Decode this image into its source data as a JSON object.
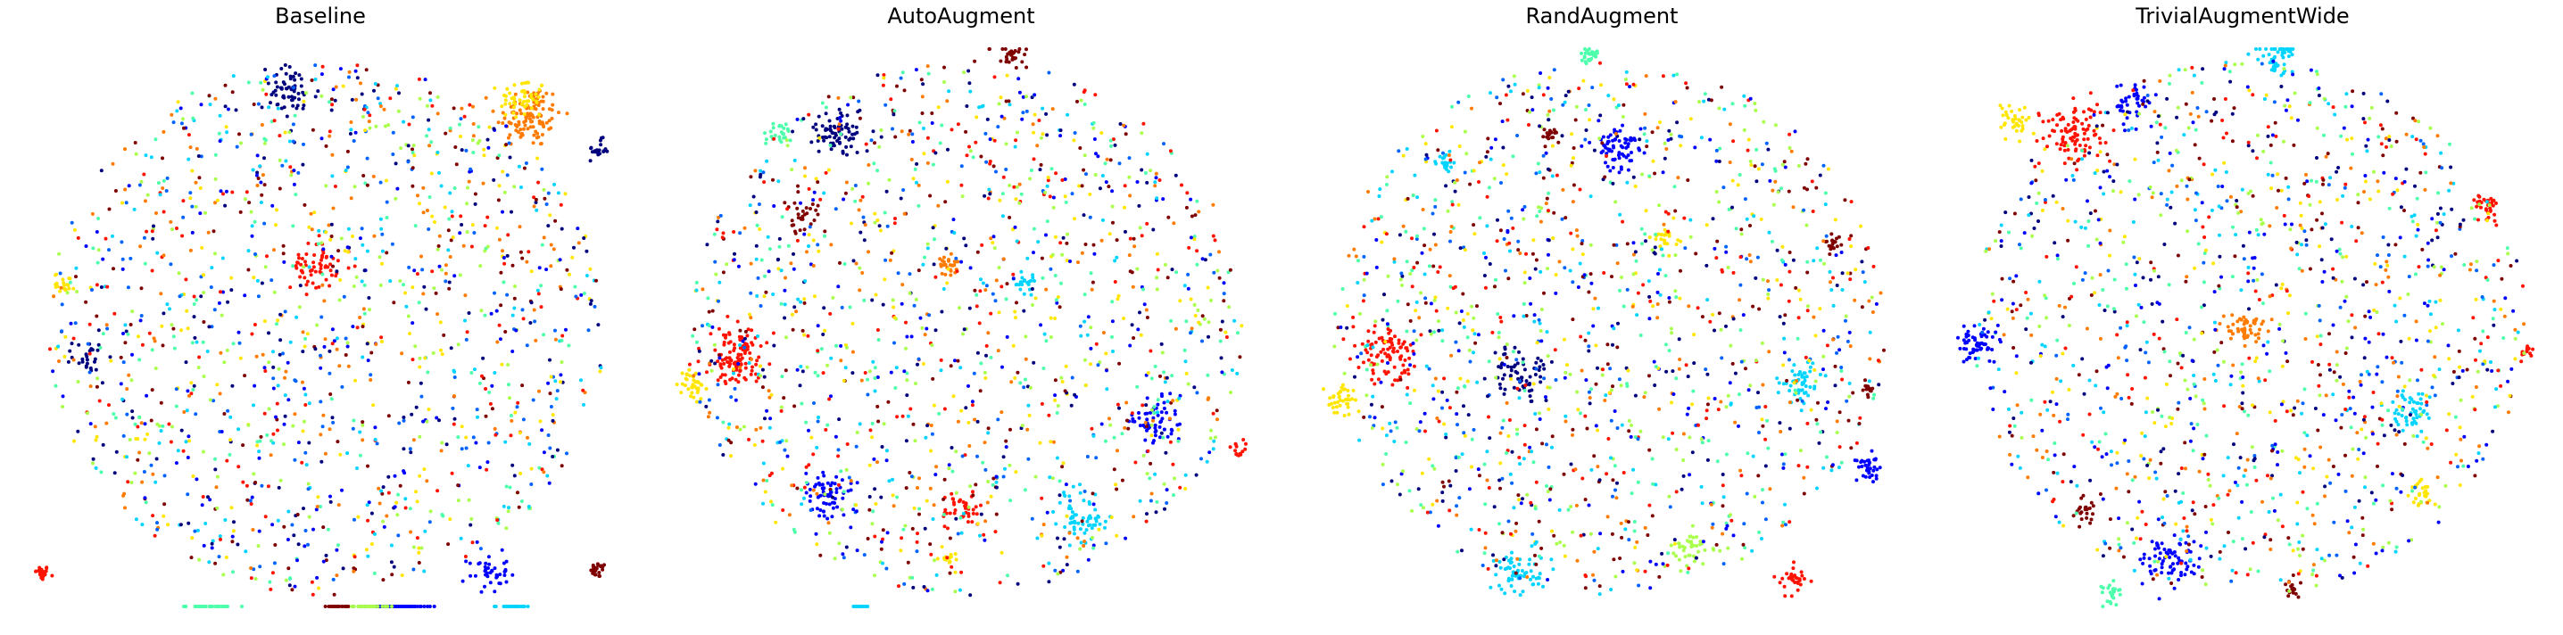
{
  "figure": {
    "colormap": "jet",
    "num_classes": 10,
    "class_colors": [
      "#00007f",
      "#0000ff",
      "#0063ff",
      "#00d4ff",
      "#4dffaa",
      "#aaff4d",
      "#ffe600",
      "#ff7b00",
      "#ff1300",
      "#7f0000"
    ]
  },
  "chart_data": [
    {
      "type": "scatter",
      "title": "Baseline",
      "axes": "off",
      "grid": false,
      "legend": "none",
      "clusters": [
        {
          "class": 8,
          "x": 1.0,
          "y": 6.0,
          "spread": 0.3,
          "n": 30
        },
        {
          "class": 9,
          "x": 97.0,
          "y": 6.5,
          "spread": 0.3,
          "n": 25
        },
        {
          "class": 7,
          "x": 85.0,
          "y": 88.0,
          "spread": 1.3,
          "n": 110
        },
        {
          "class": 6,
          "x": 84.0,
          "y": 91.0,
          "spread": 0.9,
          "n": 50
        },
        {
          "class": 0,
          "x": 97.0,
          "y": 82.0,
          "spread": 0.4,
          "n": 20
        },
        {
          "class": 1,
          "x": 78.0,
          "y": 6.0,
          "spread": 0.8,
          "n": 40
        },
        {
          "class": 1,
          "x": 62.0,
          "y": -18.0,
          "spread": 1.3,
          "n": 90
        },
        {
          "class": 3,
          "x": 82.0,
          "y": -9.0,
          "spread": 0.7,
          "n": 35
        },
        {
          "class": 4,
          "x": 30.0,
          "y": -31.0,
          "spread": 0.9,
          "n": 40
        },
        {
          "class": 9,
          "x": 52.0,
          "y": -34.0,
          "spread": 0.4,
          "n": 20
        },
        {
          "class": 0,
          "x": 44.0,
          "y": 92.0,
          "spread": 1.1,
          "n": 60
        },
        {
          "class": 6,
          "x": 5.0,
          "y": 58.0,
          "spread": 0.4,
          "n": 20
        },
        {
          "class": 8,
          "x": 48.0,
          "y": 61.0,
          "spread": 0.9,
          "n": 60
        },
        {
          "class": 5,
          "x": 58.0,
          "y": -31.0,
          "spread": 0.7,
          "n": 30
        },
        {
          "class": 0,
          "x": 9.0,
          "y": 45.0,
          "spread": 0.6,
          "n": 25
        },
        {
          "class": "all",
          "x": 50.0,
          "y": 50.0,
          "spread": 5.0,
          "n": 1400
        }
      ]
    },
    {
      "type": "scatter",
      "title": "AutoAugment",
      "axes": "off",
      "grid": false,
      "legend": "none",
      "clusters": [
        {
          "class": 9,
          "x": 58.0,
          "y": 99.0,
          "spread": 0.6,
          "n": 30
        },
        {
          "class": 4,
          "x": 17.0,
          "y": 85.0,
          "spread": 0.6,
          "n": 25
        },
        {
          "class": 9,
          "x": 22.0,
          "y": 70.0,
          "spread": 0.7,
          "n": 30
        },
        {
          "class": 0,
          "x": 28.0,
          "y": 85.0,
          "spread": 1.0,
          "n": 70
        },
        {
          "class": 6,
          "x": 3.0,
          "y": 40.0,
          "spread": 0.6,
          "n": 35
        },
        {
          "class": 8,
          "x": 10.0,
          "y": 45.0,
          "spread": 1.2,
          "n": 110
        },
        {
          "class": 1,
          "x": 26.0,
          "y": 20.0,
          "spread": 0.9,
          "n": 60
        },
        {
          "class": 3,
          "x": 32.0,
          "y": -5.0,
          "spread": 0.3,
          "n": 20
        },
        {
          "class": 1,
          "x": 83.0,
          "y": 33.0,
          "spread": 1.0,
          "n": 60
        },
        {
          "class": 8,
          "x": 97.0,
          "y": 28.0,
          "spread": 0.3,
          "n": 15
        },
        {
          "class": 3,
          "x": 70.0,
          "y": 16.0,
          "spread": 1.0,
          "n": 60
        },
        {
          "class": 8,
          "x": 50.0,
          "y": 18.0,
          "spread": 0.8,
          "n": 40
        },
        {
          "class": 6,
          "x": 47.0,
          "y": 9.0,
          "spread": 0.3,
          "n": 15
        },
        {
          "class": 3,
          "x": 60.0,
          "y": 58.0,
          "spread": 0.4,
          "n": 20
        },
        {
          "class": 7,
          "x": 47.0,
          "y": 61.0,
          "spread": 0.5,
          "n": 25
        },
        {
          "class": "all",
          "x": 50.0,
          "y": 50.0,
          "spread": 4.5,
          "n": 1350
        }
      ]
    },
    {
      "type": "scatter",
      "title": "RandAugment",
      "axes": "off",
      "grid": false,
      "legend": "none",
      "clusters": [
        {
          "class": 4,
          "x": 47.0,
          "y": 99.0,
          "spread": 0.4,
          "n": 30
        },
        {
          "class": 9,
          "x": 40.0,
          "y": 85.0,
          "spread": 0.4,
          "n": 20
        },
        {
          "class": 1,
          "x": 52.0,
          "y": 82.0,
          "spread": 0.9,
          "n": 70
        },
        {
          "class": 3,
          "x": 22.0,
          "y": 80.0,
          "spread": 0.4,
          "n": 20
        },
        {
          "class": 6,
          "x": 4.0,
          "y": 37.0,
          "spread": 0.6,
          "n": 40
        },
        {
          "class": 8,
          "x": 12.0,
          "y": 45.0,
          "spread": 1.2,
          "n": 90
        },
        {
          "class": 9,
          "x": 89.0,
          "y": 65.0,
          "spread": 0.4,
          "n": 20
        },
        {
          "class": 9,
          "x": 95.0,
          "y": 39.0,
          "spread": 0.3,
          "n": 15
        },
        {
          "class": 1,
          "x": 95.0,
          "y": 25.0,
          "spread": 0.6,
          "n": 35
        },
        {
          "class": 3,
          "x": 83.0,
          "y": 40.0,
          "spread": 0.9,
          "n": 50
        },
        {
          "class": 0,
          "x": 35.0,
          "y": 42.0,
          "spread": 1.0,
          "n": 60
        },
        {
          "class": 3,
          "x": 35.0,
          "y": 6.0,
          "spread": 1.0,
          "n": 60
        },
        {
          "class": 8,
          "x": 82.0,
          "y": 5.0,
          "spread": 0.6,
          "n": 30
        },
        {
          "class": 6,
          "x": 60.0,
          "y": 66.0,
          "spread": 0.5,
          "n": 25
        },
        {
          "class": 5,
          "x": 65.0,
          "y": 10.0,
          "spread": 0.8,
          "n": 40
        },
        {
          "class": "all",
          "x": 50.0,
          "y": 50.0,
          "spread": 4.5,
          "n": 1350
        }
      ]
    },
    {
      "type": "scatter",
      "title": "TrivialAugmentWide",
      "axes": "off",
      "grid": false,
      "legend": "none",
      "clusters": [
        {
          "class": 6,
          "x": 10.0,
          "y": 87.0,
          "spread": 0.6,
          "n": 35
        },
        {
          "class": 8,
          "x": 20.0,
          "y": 85.0,
          "spread": 1.2,
          "n": 90
        },
        {
          "class": 1,
          "x": 30.0,
          "y": 90.0,
          "spread": 0.8,
          "n": 40
        },
        {
          "class": 3,
          "x": 55.0,
          "y": 99.0,
          "spread": 0.8,
          "n": 50
        },
        {
          "class": 8,
          "x": 91.0,
          "y": 72.0,
          "spread": 0.6,
          "n": 35
        },
        {
          "class": 8,
          "x": 98.0,
          "y": 46.0,
          "spread": 0.3,
          "n": 15
        },
        {
          "class": 1,
          "x": 3.0,
          "y": 47.0,
          "spread": 0.8,
          "n": 60
        },
        {
          "class": 1,
          "x": 37.0,
          "y": 8.0,
          "spread": 1.0,
          "n": 70
        },
        {
          "class": 9,
          "x": 22.0,
          "y": 17.0,
          "spread": 0.5,
          "n": 20
        },
        {
          "class": 4,
          "x": 26.0,
          "y": 2.0,
          "spread": 0.5,
          "n": 25
        },
        {
          "class": 9,
          "x": 58.0,
          "y": 3.0,
          "spread": 0.3,
          "n": 15
        },
        {
          "class": 3,
          "x": 78.0,
          "y": 35.0,
          "spread": 0.9,
          "n": 50
        },
        {
          "class": 6,
          "x": 80.0,
          "y": 20.0,
          "spread": 0.5,
          "n": 25
        },
        {
          "class": 7,
          "x": 50.0,
          "y": 50.0,
          "spread": 0.9,
          "n": 50
        },
        {
          "class": "all",
          "x": 50.0,
          "y": 50.0,
          "spread": 4.5,
          "n": 1350
        }
      ]
    }
  ]
}
